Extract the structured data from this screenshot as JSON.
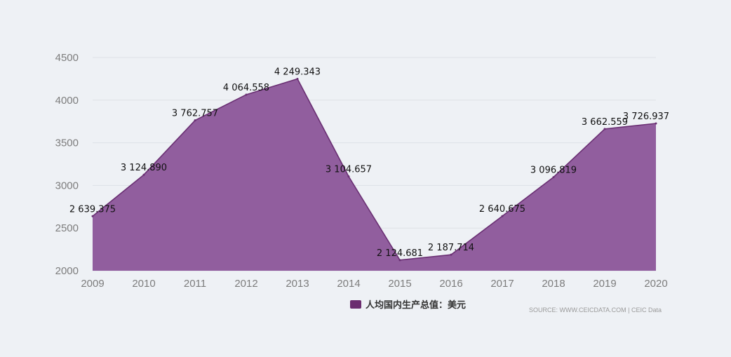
{
  "chart_data": {
    "type": "area",
    "title": "",
    "xlabel": "",
    "ylabel": "",
    "x": [
      "2009",
      "2010",
      "2011",
      "2012",
      "2013",
      "2014",
      "2015",
      "2016",
      "2017",
      "2018",
      "2019",
      "2020"
    ],
    "series": [
      {
        "name": "人均国内生产总值：美元",
        "values": [
          2639.375,
          3124.89,
          3762.757,
          4064.558,
          4249.343,
          3104.657,
          2124.681,
          2187.714,
          2640.675,
          3096.819,
          3662.559,
          3726.937
        ],
        "labels": [
          "2 639.375",
          "3 124.890",
          "3 762.757",
          "4 064.558",
          "4 249.343",
          "3 104.657",
          "2 124.681",
          "2 187.714",
          "2 640.675",
          "3 096.819",
          "3 662.559",
          "3 726.937"
        ]
      }
    ],
    "yticks": [
      "2000",
      "2500",
      "3000",
      "3500",
      "4000",
      "4500"
    ],
    "ylim": [
      2000,
      4500
    ],
    "grid": true,
    "legend": "bottom-center",
    "source": "SOURCE: WWW.CEICDATA.COM | CEIC Data",
    "colors": {
      "fill": "#915e9e",
      "line": "#6a2f73",
      "legend": "#6b2d6f",
      "grid": "#dde1e6",
      "background": "#eef1f5"
    }
  }
}
